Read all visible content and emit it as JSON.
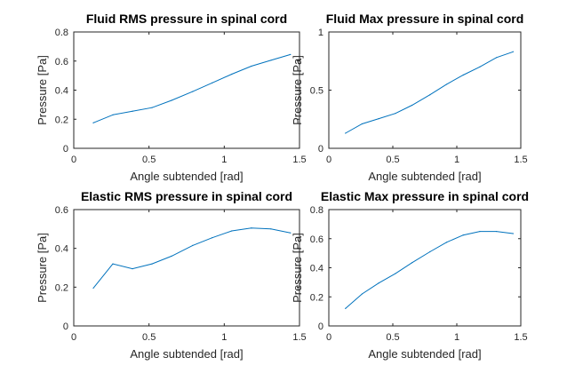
{
  "figure": {
    "background": "#ffffff",
    "axes_color": "#262626",
    "line_color": "#0072BD"
  },
  "chart_data": [
    {
      "type": "line",
      "title": "Fluid RMS pressure in spinal cord",
      "xlabel": "Angle subtended [rad]",
      "ylabel": "Pressure [Pa]",
      "xlim": [
        0,
        1.5
      ],
      "ylim": [
        0,
        0.8
      ],
      "xticks": [
        0,
        0.5,
        1,
        1.5
      ],
      "yticks": [
        0,
        0.2,
        0.4,
        0.6,
        0.8
      ],
      "xtick_labels": [
        "0",
        "0.5",
        "1",
        "1.5"
      ],
      "ytick_labels": [
        "0",
        "0.2",
        "0.4",
        "0.6",
        "0.8"
      ],
      "grid": false,
      "series": [
        {
          "x": [
            0.13,
            0.26,
            0.39,
            0.52,
            0.65,
            0.79,
            0.92,
            1.05,
            1.18,
            1.31,
            1.44
          ],
          "y": [
            0.175,
            0.23,
            0.255,
            0.28,
            0.33,
            0.39,
            0.45,
            0.51,
            0.565,
            0.605,
            0.645
          ]
        }
      ]
    },
    {
      "type": "line",
      "title": "Fluid Max pressure in spinal cord",
      "xlabel": "Angle subtended [rad]",
      "ylabel": "Pressure [Pa]",
      "xlim": [
        0,
        1.5
      ],
      "ylim": [
        0,
        1
      ],
      "xticks": [
        0,
        0.5,
        1,
        1.5
      ],
      "yticks": [
        0,
        0.5,
        1
      ],
      "xtick_labels": [
        "0",
        "0.5",
        "1",
        "1.5"
      ],
      "ytick_labels": [
        "0",
        "0.5",
        "1"
      ],
      "grid": false,
      "series": [
        {
          "x": [
            0.13,
            0.26,
            0.39,
            0.52,
            0.65,
            0.79,
            0.92,
            1.05,
            1.18,
            1.31,
            1.44
          ],
          "y": [
            0.13,
            0.21,
            0.255,
            0.3,
            0.37,
            0.46,
            0.55,
            0.63,
            0.7,
            0.78,
            0.83
          ]
        }
      ]
    },
    {
      "type": "line",
      "title": "Elastic RMS pressure in spinal cord",
      "xlabel": "Angle subtended [rad]",
      "ylabel": "Pressure [Pa]",
      "xlim": [
        0,
        1.5
      ],
      "ylim": [
        0,
        0.6
      ],
      "xticks": [
        0,
        0.5,
        1,
        1.5
      ],
      "yticks": [
        0,
        0.2,
        0.4,
        0.6
      ],
      "xtick_labels": [
        "0",
        "0.5",
        "1",
        "1.5"
      ],
      "ytick_labels": [
        "0",
        "0.2",
        "0.4",
        "0.6"
      ],
      "grid": false,
      "series": [
        {
          "x": [
            0.13,
            0.26,
            0.39,
            0.52,
            0.65,
            0.79,
            0.92,
            1.05,
            1.18,
            1.31,
            1.44
          ],
          "y": [
            0.195,
            0.32,
            0.295,
            0.32,
            0.36,
            0.415,
            0.455,
            0.49,
            0.505,
            0.5,
            0.48
          ]
        }
      ]
    },
    {
      "type": "line",
      "title": "Elastic Max pressure in spinal cord",
      "xlabel": "Angle subtended [rad]",
      "ylabel": "Pressure [Pa]",
      "xlim": [
        0,
        1.5
      ],
      "ylim": [
        0,
        0.8
      ],
      "xticks": [
        0,
        0.5,
        1,
        1.5
      ],
      "yticks": [
        0,
        0.2,
        0.4,
        0.6,
        0.8
      ],
      "xtick_labels": [
        "0",
        "0.5",
        "1",
        "1.5"
      ],
      "ytick_labels": [
        "0",
        "0.2",
        "0.4",
        "0.6",
        "0.8"
      ],
      "grid": false,
      "series": [
        {
          "x": [
            0.13,
            0.26,
            0.39,
            0.52,
            0.65,
            0.79,
            0.92,
            1.05,
            1.18,
            1.31,
            1.44
          ],
          "y": [
            0.12,
            0.22,
            0.295,
            0.36,
            0.435,
            0.51,
            0.575,
            0.625,
            0.65,
            0.65,
            0.635
          ]
        }
      ]
    }
  ]
}
